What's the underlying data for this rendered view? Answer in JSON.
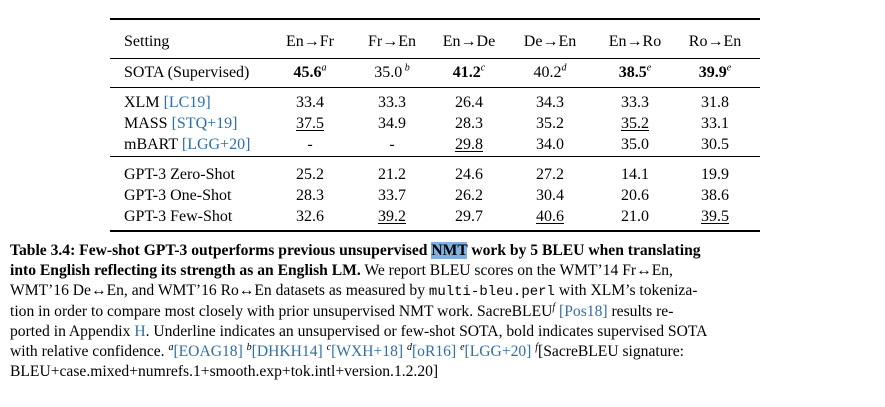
{
  "table": {
    "columns": [
      "Setting",
      "En→Fr",
      "Fr→En",
      "En→De",
      "De→En",
      "En→Ro",
      "Ro→En"
    ],
    "sota_row": {
      "label": "SOTA (Supervised)",
      "cells": [
        {
          "v": "45.6",
          "sup": "a",
          "bold": true
        },
        {
          "v": "35.0",
          "sup": " b",
          "bold": false
        },
        {
          "v": "41.2",
          "sup": "c",
          "bold": true
        },
        {
          "v": "40.2",
          "sup": "d",
          "bold": false
        },
        {
          "v": "38.5",
          "sup": "e",
          "bold": true
        },
        {
          "v": "39.9",
          "sup": "e",
          "bold": true
        }
      ]
    },
    "group1": [
      {
        "name": "XLM ",
        "cite": "[LC19]",
        "cells": [
          {
            "v": "33.4"
          },
          {
            "v": "33.3"
          },
          {
            "v": "26.4"
          },
          {
            "v": "34.3"
          },
          {
            "v": "33.3"
          },
          {
            "v": "31.8"
          }
        ]
      },
      {
        "name": "MASS ",
        "cite": "[STQ+19]",
        "cells": [
          {
            "v": "37.5",
            "u": true
          },
          {
            "v": "34.9"
          },
          {
            "v": "28.3"
          },
          {
            "v": "35.2"
          },
          {
            "v": "35.2",
            "u": true
          },
          {
            "v": "33.1"
          }
        ]
      },
      {
        "name": "mBART ",
        "cite": "[LGG+20]",
        "cells": [
          {
            "v": "-"
          },
          {
            "v": "-"
          },
          {
            "v": "29.8",
            "u": true
          },
          {
            "v": "34.0"
          },
          {
            "v": "35.0"
          },
          {
            "v": "30.5"
          }
        ]
      }
    ],
    "group2": [
      {
        "name": "GPT-3 Zero-Shot",
        "cells": [
          {
            "v": "25.2"
          },
          {
            "v": "21.2"
          },
          {
            "v": "24.6"
          },
          {
            "v": "27.2"
          },
          {
            "v": "14.1"
          },
          {
            "v": "19.9"
          }
        ]
      },
      {
        "name": "GPT-3 One-Shot",
        "cells": [
          {
            "v": "28.3"
          },
          {
            "v": "33.7"
          },
          {
            "v": "26.2"
          },
          {
            "v": "30.4"
          },
          {
            "v": "20.6"
          },
          {
            "v": "38.6"
          }
        ]
      },
      {
        "name": "GPT-3 Few-Shot",
        "cells": [
          {
            "v": "32.6"
          },
          {
            "v": "39.2",
            "u": true
          },
          {
            "v": "29.7"
          },
          {
            "v": "40.6",
            "u": true
          },
          {
            "v": "21.0"
          },
          {
            "v": "39.5",
            "u": true
          }
        ]
      }
    ]
  },
  "caption": {
    "label": "Table 3.4:",
    "bold_a": " Few-shot GPT-3 outperforms previous unsupervised ",
    "highlight": "NMT",
    "bold_b": " work by 5 BLEU when translating",
    "bold_line2": "into English reflecting its strength as an English LM.",
    "line2_rest": " We report BLEU scores on the WMT’14 Fr↔En,",
    "line3_a": "WMT’16 De↔En, and WMT’16 Ro↔En datasets as measured by ",
    "line3_mono": "multi-bleu.perl",
    "line3_b": " with XLM’s tokeniza-",
    "line4": "tion in order to compare most closely with prior unsupervised NMT work.  SacreBLEU",
    "line4_sup": "f",
    "line4_cite": "[Pos18]",
    "line4_b": " results re-",
    "line5_a": "ported in Appendix ",
    "line5_cite": "H",
    "line5_b": ". Underline indicates an unsupervised or few-shot SOTA, bold indicates supervised SOTA",
    "line6_a": "with relative confidence.  ",
    "refs": [
      {
        "sup": "a",
        "cite": "[EOAG18]"
      },
      {
        "sup": "b",
        "cite": "[DHKH14]"
      },
      {
        "sup": "c",
        "cite": "[WXH+18]"
      },
      {
        "sup": "d",
        "cite": "[oR16]"
      },
      {
        "sup": "e",
        "cite": "[LGG+20]"
      }
    ],
    "line6_f_sup": "f",
    "line6_tail": "[SacreBLEU signature:",
    "line7": "BLEU+case.mixed+numrefs.1+smooth.exp+tok.intl+version.1.2.20]"
  }
}
